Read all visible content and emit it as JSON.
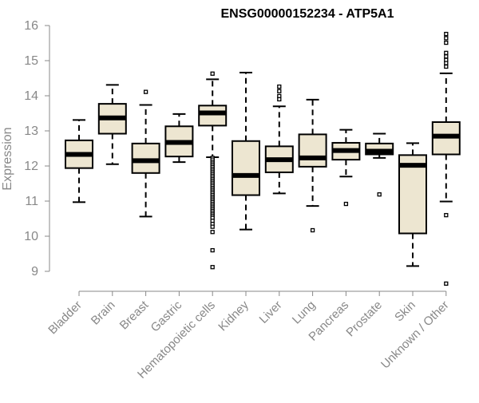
{
  "chart_data": {
    "type": "box",
    "title": "ENSG00000152234 - ATP5A1",
    "ylabel": "Expression",
    "xlabel": "",
    "ylim": [
      9,
      16
    ],
    "yticks": [
      9,
      10,
      11,
      12,
      13,
      14,
      15,
      16
    ],
    "grid": false,
    "box_fill": "#ede6d1",
    "box_stroke": "#000000",
    "axis_color": "#888888",
    "categories": [
      "Bladder",
      "Brain",
      "Breast",
      "Gastric",
      "Hematopoietic cells",
      "Kidney",
      "Liver",
      "Lung",
      "Pancreas",
      "Prostate",
      "Skin",
      "Unknown / Other"
    ],
    "boxes": [
      {
        "name": "Bladder",
        "whisker_low": 10.97,
        "q1": 11.94,
        "median": 12.33,
        "q3": 12.73,
        "whisker_high": 13.31,
        "outliers": []
      },
      {
        "name": "Brain",
        "whisker_low": 12.05,
        "q1": 12.92,
        "median": 13.37,
        "q3": 13.77,
        "whisker_high": 14.31,
        "outliers": []
      },
      {
        "name": "Breast",
        "whisker_low": 10.56,
        "q1": 11.8,
        "median": 12.15,
        "q3": 12.64,
        "whisker_high": 13.74,
        "outliers": [
          14.11
        ]
      },
      {
        "name": "Gastric",
        "whisker_low": 12.11,
        "q1": 12.27,
        "median": 12.67,
        "q3": 13.13,
        "whisker_high": 13.48,
        "outliers": []
      },
      {
        "name": "Hematopoietic cells",
        "whisker_low": 12.25,
        "q1": 13.15,
        "median": 13.51,
        "q3": 13.72,
        "whisker_high": 14.47,
        "outliers": [
          14.63,
          12.23,
          12.18,
          12.12,
          12.07,
          12.02,
          11.97,
          11.92,
          11.87,
          11.82,
          11.77,
          11.72,
          11.67,
          11.62,
          11.57,
          11.52,
          11.47,
          11.42,
          11.37,
          11.32,
          11.27,
          11.22,
          11.17,
          11.12,
          11.07,
          11.02,
          10.97,
          10.92,
          10.87,
          10.82,
          10.77,
          10.72,
          10.67,
          10.62,
          10.57,
          10.52,
          10.44,
          10.35,
          10.27,
          10.12,
          9.6,
          9.12
        ]
      },
      {
        "name": "Kidney",
        "whisker_low": 10.19,
        "q1": 11.17,
        "median": 11.73,
        "q3": 12.71,
        "whisker_high": 14.66,
        "outliers": []
      },
      {
        "name": "Liver",
        "whisker_low": 11.22,
        "q1": 11.82,
        "median": 12.18,
        "q3": 12.56,
        "whisker_high": 13.7,
        "outliers": [
          14.26,
          14.13,
          13.99,
          13.9
        ]
      },
      {
        "name": "Lung",
        "whisker_low": 10.86,
        "q1": 11.98,
        "median": 12.23,
        "q3": 12.9,
        "whisker_high": 13.89,
        "outliers": [
          10.17
        ]
      },
      {
        "name": "Pancreas",
        "whisker_low": 11.7,
        "q1": 12.18,
        "median": 12.44,
        "q3": 12.66,
        "whisker_high": 13.03,
        "outliers": [
          10.92
        ]
      },
      {
        "name": "Prostate",
        "whisker_low": 12.23,
        "q1": 12.33,
        "median": 12.42,
        "q3": 12.64,
        "whisker_high": 12.92,
        "outliers": [
          11.19
        ]
      },
      {
        "name": "Skin",
        "whisker_low": 9.15,
        "q1": 10.08,
        "median": 12.02,
        "q3": 12.31,
        "whisker_high": 12.65,
        "outliers": []
      },
      {
        "name": "Unknown / Other",
        "whisker_low": 10.99,
        "q1": 12.33,
        "median": 12.85,
        "q3": 13.25,
        "whisker_high": 14.64,
        "outliers": [
          15.76,
          15.64,
          15.51,
          15.22,
          15.12,
          15.02,
          14.93,
          14.83,
          10.6,
          8.65
        ]
      }
    ]
  }
}
